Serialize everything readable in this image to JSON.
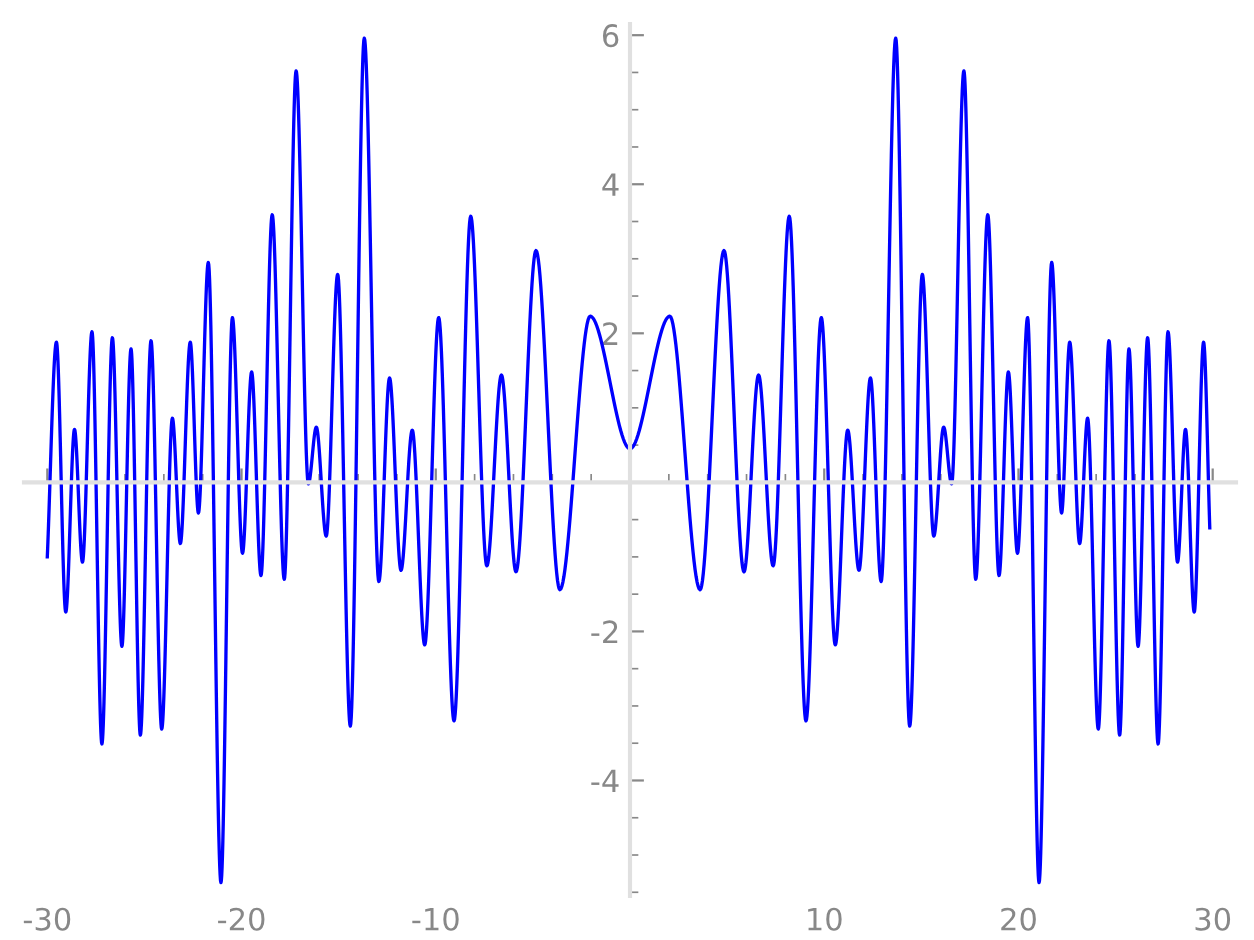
{
  "chart_data": {
    "type": "line",
    "xlim": [
      -31.2,
      31.2
    ],
    "ylim": [
      -5.55,
      6.15
    ],
    "xticks": [
      -30,
      -20,
      -10,
      10,
      20,
      30
    ],
    "yticks": [
      -4,
      -2,
      2,
      4,
      6
    ],
    "grid": false,
    "legend": false,
    "marker": "none",
    "line_style": "solid",
    "series": [
      {
        "color": "#0000ff",
        "x": [
          -30,
          -29.53,
          -29.05,
          -28.6,
          -28.19,
          -27.7,
          -27.19,
          -26.65,
          -26.16,
          -25.69,
          -25.21,
          -24.66,
          -24.11,
          -23.56,
          -23.15,
          -22.64,
          -22.22,
          -21.71,
          -21.06,
          -20.47,
          -19.95,
          -19.48,
          -19.0,
          -18.42,
          -17.8,
          -17.19,
          -16.56,
          -16.15,
          -15.64,
          -15.05,
          -14.4,
          -13.68,
          -12.93,
          -12.38,
          -11.79,
          -11.21,
          -10.57,
          -9.85,
          -9.06,
          -8.2,
          -7.37,
          -6.62,
          -5.87,
          -4.84,
          -3.61,
          -2.05,
          0,
          2.05,
          3.61,
          4.84,
          5.87,
          6.62,
          7.37,
          8.2,
          9.06,
          9.85,
          10.57,
          11.21,
          11.79,
          12.38,
          12.93,
          13.68,
          14.4,
          15.05,
          15.64,
          16.15,
          16.56,
          17.19,
          17.8,
          18.42,
          19.0,
          19.48,
          19.95,
          20.47,
          21.06,
          21.71,
          22.22,
          22.64,
          23.15,
          23.56,
          24.11,
          24.66,
          25.21,
          25.69,
          26.16,
          26.65,
          27.19,
          27.7,
          28.19,
          28.6,
          29.05,
          29.53,
          29.85
        ],
        "values": [
          -1.0,
          1.88,
          -1.74,
          0.71,
          -1.07,
          2.02,
          -3.51,
          1.94,
          -2.2,
          1.79,
          -3.39,
          1.9,
          -3.31,
          0.86,
          -0.82,
          1.88,
          -0.41,
          2.95,
          -5.37,
          2.21,
          -0.95,
          1.48,
          -1.25,
          3.59,
          -1.3,
          5.52,
          -0.02,
          0.74,
          -0.72,
          2.79,
          -3.27,
          5.96,
          -1.33,
          1.4,
          -1.18,
          0.7,
          -2.18,
          2.21,
          -3.2,
          3.57,
          -1.12,
          1.44,
          -1.2,
          3.11,
          -1.44,
          2.23,
          0.45,
          2.23,
          -1.44,
          3.11,
          -1.2,
          1.44,
          -1.12,
          3.57,
          -3.2,
          2.21,
          -2.18,
          0.7,
          -1.18,
          1.4,
          -1.33,
          5.96,
          -3.27,
          2.79,
          -0.72,
          0.74,
          -0.02,
          5.52,
          -1.3,
          3.59,
          -1.25,
          1.48,
          -0.95,
          2.21,
          -5.37,
          2.95,
          -0.41,
          1.88,
          -0.82,
          0.86,
          -3.31,
          1.9,
          -3.39,
          1.79,
          -2.2,
          1.94,
          -3.51,
          2.02,
          -1.07,
          0.71,
          -1.74,
          1.88,
          -0.61
        ]
      }
    ]
  }
}
